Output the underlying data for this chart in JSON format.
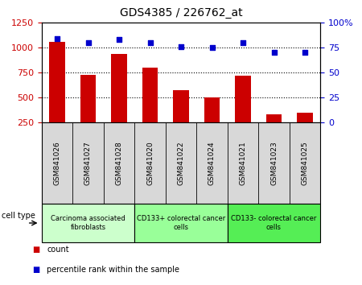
{
  "title": "GDS4385 / 226762_at",
  "samples": [
    "GSM841026",
    "GSM841027",
    "GSM841028",
    "GSM841020",
    "GSM841022",
    "GSM841024",
    "GSM841021",
    "GSM841023",
    "GSM841025"
  ],
  "counts": [
    1060,
    730,
    940,
    800,
    575,
    500,
    720,
    330,
    345
  ],
  "percentile_ranks": [
    84,
    80,
    83,
    80,
    76,
    75,
    80,
    70,
    70
  ],
  "ylim_left": [
    250,
    1250
  ],
  "ylim_right": [
    0,
    100
  ],
  "yticks_left": [
    250,
    500,
    750,
    1000,
    1250
  ],
  "yticks_right": [
    0,
    25,
    50,
    75,
    100
  ],
  "bar_color": "#cc0000",
  "scatter_color": "#0000cc",
  "dotted_line_values": [
    500,
    750,
    1000
  ],
  "cell_type_groups": [
    {
      "label": "Carcinoma associated\nfibroblasts",
      "start": 0,
      "end": 3,
      "color": "#ccffcc"
    },
    {
      "label": "CD133+ colorectal cancer\ncells",
      "start": 3,
      "end": 6,
      "color": "#99ff99"
    },
    {
      "label": "CD133- colorectal cancer\ncells",
      "start": 6,
      "end": 9,
      "color": "#55ee55"
    }
  ],
  "cell_type_label": "cell type",
  "legend_count_label": "count",
  "legend_pct_label": "percentile rank within the sample",
  "plot_bg_color": "#ffffff",
  "xticklabels_bg": "#d8d8d8",
  "tick_label_color_left": "#cc0000",
  "tick_label_color_right": "#0000cc"
}
